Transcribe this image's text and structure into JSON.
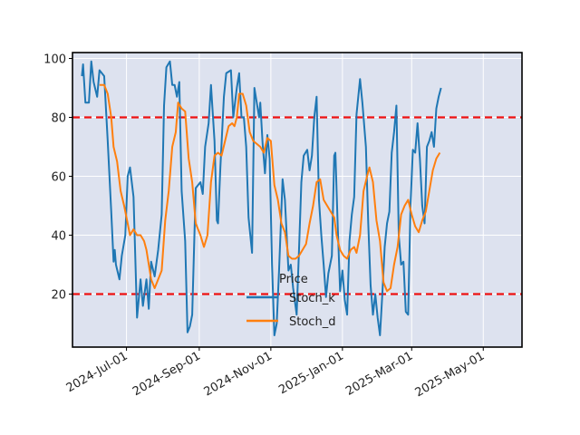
{
  "chart_data": {
    "type": "line",
    "title": "",
    "xlabel": "",
    "ylabel": "",
    "ylim": [
      2,
      102
    ],
    "xlim": [
      "2024-05-16",
      "2025-06-03"
    ],
    "x_ticks": [
      "2024-07-01",
      "2024-09-01",
      "2024-11-01",
      "2025-01-01",
      "2025-03-01",
      "2025-05-01"
    ],
    "x_tick_labels": [
      "2024-Jul-01",
      "2024-Sep-01",
      "2024-Nov-01",
      "2025-Jan-01",
      "2025-Mar-01",
      "2025-May-01"
    ],
    "y_ticks": [
      20,
      40,
      60,
      80,
      100
    ],
    "y_tick_labels": [
      "20",
      "40",
      "60",
      "80",
      "100"
    ],
    "grid": true,
    "background": "#dde2ef",
    "thresholds": [
      {
        "value": 80,
        "color": "#ee1111",
        "style": "dashed"
      },
      {
        "value": 20,
        "color": "#ee1111",
        "style": "dashed"
      }
    ],
    "legend": {
      "title": "Price",
      "placement": "lower-center"
    },
    "series": [
      {
        "name": "Stoch_k",
        "color": "#1f77b4",
        "points": [
          [
            "2024-05-24",
            94
          ],
          [
            "2024-05-25",
            98
          ],
          [
            "2024-05-27",
            85
          ],
          [
            "2024-05-30",
            85
          ],
          [
            "2024-06-01",
            99
          ],
          [
            "2024-06-03",
            92
          ],
          [
            "2024-06-06",
            87
          ],
          [
            "2024-06-08",
            96
          ],
          [
            "2024-06-12",
            94
          ],
          [
            "2024-06-15",
            72
          ],
          [
            "2024-06-18",
            48
          ],
          [
            "2024-06-20",
            31
          ],
          [
            "2024-06-21",
            35
          ],
          [
            "2024-06-22",
            30
          ],
          [
            "2024-06-25",
            25
          ],
          [
            "2024-06-27",
            33
          ],
          [
            "2024-06-30",
            40
          ],
          [
            "2024-07-02",
            60
          ],
          [
            "2024-07-04",
            63
          ],
          [
            "2024-07-07",
            53
          ],
          [
            "2024-07-10",
            12
          ],
          [
            "2024-07-13",
            25
          ],
          [
            "2024-07-15",
            16
          ],
          [
            "2024-07-18",
            25
          ],
          [
            "2024-07-20",
            15
          ],
          [
            "2024-07-22",
            31
          ],
          [
            "2024-07-25",
            26
          ],
          [
            "2024-07-28",
            35
          ],
          [
            "2024-07-31",
            47
          ],
          [
            "2024-08-02",
            84
          ],
          [
            "2024-08-04",
            97
          ],
          [
            "2024-08-07",
            99
          ],
          [
            "2024-08-09",
            91
          ],
          [
            "2024-08-11",
            91
          ],
          [
            "2024-08-13",
            87
          ],
          [
            "2024-08-15",
            92
          ],
          [
            "2024-08-17",
            55
          ],
          [
            "2024-08-20",
            38
          ],
          [
            "2024-08-22",
            7
          ],
          [
            "2024-08-24",
            9
          ],
          [
            "2024-08-26",
            13
          ],
          [
            "2024-08-29",
            56
          ],
          [
            "2024-09-02",
            58
          ],
          [
            "2024-09-04",
            54
          ],
          [
            "2024-09-06",
            70
          ],
          [
            "2024-09-09",
            78
          ],
          [
            "2024-09-11",
            91
          ],
          [
            "2024-09-14",
            72
          ],
          [
            "2024-09-16",
            45
          ],
          [
            "2024-09-17",
            44
          ],
          [
            "2024-09-19",
            63
          ],
          [
            "2024-09-22",
            87
          ],
          [
            "2024-09-24",
            95
          ],
          [
            "2024-09-28",
            96
          ],
          [
            "2024-09-30",
            80
          ],
          [
            "2024-10-03",
            90
          ],
          [
            "2024-10-05",
            95
          ],
          [
            "2024-10-07",
            80
          ],
          [
            "2024-10-09",
            80
          ],
          [
            "2024-10-11",
            70
          ],
          [
            "2024-10-13",
            46
          ],
          [
            "2024-10-16",
            34
          ],
          [
            "2024-10-18",
            90
          ],
          [
            "2024-10-20",
            85
          ],
          [
            "2024-10-22",
            80
          ],
          [
            "2024-10-23",
            85
          ],
          [
            "2024-10-25",
            71
          ],
          [
            "2024-10-27",
            61
          ],
          [
            "2024-10-29",
            74
          ],
          [
            "2024-10-31",
            66
          ],
          [
            "2024-11-02",
            30
          ],
          [
            "2024-11-04",
            6
          ],
          [
            "2024-11-06",
            10
          ],
          [
            "2024-11-08",
            28
          ],
          [
            "2024-11-11",
            59
          ],
          [
            "2024-11-13",
            52
          ],
          [
            "2024-11-16",
            28
          ],
          [
            "2024-11-18",
            30
          ],
          [
            "2024-11-20",
            22
          ],
          [
            "2024-11-23",
            13
          ],
          [
            "2024-11-25",
            35
          ],
          [
            "2024-11-27",
            58
          ],
          [
            "2024-11-29",
            67
          ],
          [
            "2024-12-02",
            69
          ],
          [
            "2024-12-04",
            62
          ],
          [
            "2024-12-06",
            67
          ],
          [
            "2024-12-08",
            80
          ],
          [
            "2024-12-10",
            87
          ],
          [
            "2024-12-12",
            52
          ],
          [
            "2024-12-14",
            40
          ],
          [
            "2024-12-16",
            30
          ],
          [
            "2024-12-18",
            19
          ],
          [
            "2024-12-20",
            27
          ],
          [
            "2024-12-23",
            33
          ],
          [
            "2024-12-25",
            67
          ],
          [
            "2024-12-26",
            68
          ],
          [
            "2024-12-28",
            43
          ],
          [
            "2024-12-30",
            21
          ],
          [
            "2025-01-01",
            28
          ],
          [
            "2025-01-03",
            18
          ],
          [
            "2025-01-05",
            13
          ],
          [
            "2025-01-07",
            38
          ],
          [
            "2025-01-09",
            47
          ],
          [
            "2025-01-11",
            53
          ],
          [
            "2025-01-13",
            81
          ],
          [
            "2025-01-16",
            93
          ],
          [
            "2025-01-18",
            85
          ],
          [
            "2025-01-21",
            70
          ],
          [
            "2025-01-23",
            44
          ],
          [
            "2025-01-25",
            23
          ],
          [
            "2025-01-27",
            13
          ],
          [
            "2025-01-29",
            20
          ],
          [
            "2025-01-31",
            12
          ],
          [
            "2025-02-02",
            6
          ],
          [
            "2025-02-04",
            20
          ],
          [
            "2025-02-06",
            36
          ],
          [
            "2025-02-08",
            44
          ],
          [
            "2025-02-10",
            48
          ],
          [
            "2025-02-12",
            68
          ],
          [
            "2025-02-14",
            75
          ],
          [
            "2025-02-16",
            84
          ],
          [
            "2025-02-18",
            40
          ],
          [
            "2025-02-20",
            30
          ],
          [
            "2025-02-22",
            31
          ],
          [
            "2025-02-24",
            14
          ],
          [
            "2025-02-26",
            13
          ],
          [
            "2025-02-28",
            50
          ],
          [
            "2025-03-02",
            69
          ],
          [
            "2025-03-04",
            68
          ],
          [
            "2025-03-06",
            78
          ],
          [
            "2025-03-08",
            66
          ],
          [
            "2025-03-10",
            50
          ],
          [
            "2025-03-12",
            44
          ],
          [
            "2025-03-14",
            70
          ],
          [
            "2025-03-16",
            72
          ],
          [
            "2025-03-18",
            75
          ],
          [
            "2025-03-20",
            70
          ],
          [
            "2025-03-22",
            83
          ],
          [
            "2025-03-24",
            87
          ],
          [
            "2025-03-26",
            90
          ]
        ]
      },
      {
        "name": "Stoch_d",
        "color": "#ff7f0e",
        "points": [
          [
            "2024-06-08",
            91
          ],
          [
            "2024-06-12",
            91
          ],
          [
            "2024-06-15",
            88
          ],
          [
            "2024-06-18",
            80
          ],
          [
            "2024-06-20",
            70
          ],
          [
            "2024-06-23",
            65
          ],
          [
            "2024-06-26",
            55
          ],
          [
            "2024-06-29",
            50
          ],
          [
            "2024-07-02",
            44
          ],
          [
            "2024-07-04",
            40
          ],
          [
            "2024-07-07",
            42
          ],
          [
            "2024-07-10",
            40
          ],
          [
            "2024-07-13",
            40
          ],
          [
            "2024-07-16",
            38
          ],
          [
            "2024-07-18",
            35
          ],
          [
            "2024-07-20",
            30
          ],
          [
            "2024-07-22",
            25
          ],
          [
            "2024-07-25",
            22
          ],
          [
            "2024-07-28",
            25
          ],
          [
            "2024-07-31",
            28
          ],
          [
            "2024-08-03",
            45
          ],
          [
            "2024-08-06",
            55
          ],
          [
            "2024-08-09",
            70
          ],
          [
            "2024-08-12",
            75
          ],
          [
            "2024-08-14",
            85
          ],
          [
            "2024-08-17",
            83
          ],
          [
            "2024-08-20",
            82
          ],
          [
            "2024-08-23",
            66
          ],
          [
            "2024-08-26",
            58
          ],
          [
            "2024-08-29",
            44
          ],
          [
            "2024-09-02",
            40
          ],
          [
            "2024-09-05",
            36
          ],
          [
            "2024-09-08",
            40
          ],
          [
            "2024-09-11",
            58
          ],
          [
            "2024-09-14",
            67
          ],
          [
            "2024-09-17",
            68
          ],
          [
            "2024-09-20",
            67
          ],
          [
            "2024-09-23",
            72
          ],
          [
            "2024-09-26",
            77
          ],
          [
            "2024-09-29",
            78
          ],
          [
            "2024-10-01",
            77
          ],
          [
            "2024-10-03",
            80
          ],
          [
            "2024-10-05",
            88
          ],
          [
            "2024-10-08",
            88
          ],
          [
            "2024-10-11",
            84
          ],
          [
            "2024-10-14",
            75
          ],
          [
            "2024-10-17",
            72
          ],
          [
            "2024-10-20",
            71
          ],
          [
            "2024-10-23",
            70
          ],
          [
            "2024-10-26",
            68
          ],
          [
            "2024-10-29",
            73
          ],
          [
            "2024-11-01",
            72
          ],
          [
            "2024-11-04",
            57
          ],
          [
            "2024-11-07",
            52
          ],
          [
            "2024-11-10",
            44
          ],
          [
            "2024-11-13",
            41
          ],
          [
            "2024-11-16",
            33
          ],
          [
            "2024-11-19",
            32
          ],
          [
            "2024-11-22",
            32
          ],
          [
            "2024-11-25",
            33
          ],
          [
            "2024-11-28",
            35
          ],
          [
            "2024-12-01",
            37
          ],
          [
            "2024-12-04",
            44
          ],
          [
            "2024-12-07",
            50
          ],
          [
            "2024-12-10",
            58
          ],
          [
            "2024-12-13",
            59
          ],
          [
            "2024-12-16",
            52
          ],
          [
            "2024-12-19",
            50
          ],
          [
            "2024-12-22",
            48
          ],
          [
            "2024-12-25",
            46
          ],
          [
            "2024-12-27",
            40
          ],
          [
            "2024-12-30",
            35
          ],
          [
            "2025-01-02",
            33
          ],
          [
            "2025-01-05",
            32
          ],
          [
            "2025-01-08",
            35
          ],
          [
            "2025-01-11",
            36
          ],
          [
            "2025-01-13",
            34
          ],
          [
            "2025-01-16",
            40
          ],
          [
            "2025-01-19",
            55
          ],
          [
            "2025-01-22",
            60
          ],
          [
            "2025-01-24",
            63
          ],
          [
            "2025-01-27",
            58
          ],
          [
            "2025-01-30",
            45
          ],
          [
            "2025-02-02",
            38
          ],
          [
            "2025-02-05",
            24
          ],
          [
            "2025-02-08",
            21
          ],
          [
            "2025-02-11",
            22
          ],
          [
            "2025-02-14",
            30
          ],
          [
            "2025-02-17",
            36
          ],
          [
            "2025-02-20",
            47
          ],
          [
            "2025-02-23",
            50
          ],
          [
            "2025-02-26",
            52
          ],
          [
            "2025-03-01",
            47
          ],
          [
            "2025-03-04",
            43
          ],
          [
            "2025-03-07",
            41
          ],
          [
            "2025-03-10",
            45
          ],
          [
            "2025-03-13",
            48
          ],
          [
            "2025-03-16",
            55
          ],
          [
            "2025-03-19",
            62
          ],
          [
            "2025-03-22",
            66
          ],
          [
            "2025-03-25",
            68
          ]
        ]
      }
    ]
  }
}
